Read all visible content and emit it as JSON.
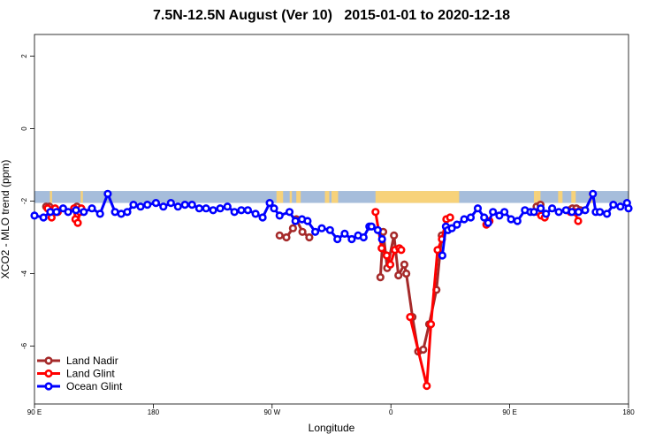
{
  "chart_data": {
    "type": "line",
    "title": "7.5N-12.5N August (Ver 10)   2015-01-01 to 2020-12-18",
    "xlabel": "Longitude",
    "ylabel": "XCO2 - MLO trend (ppm)",
    "xlim": [
      -90,
      180
    ],
    "ylim": [
      -7.6,
      2.6
    ],
    "x_ticks": [
      {
        "value": -90,
        "label": "90 E"
      },
      {
        "value": -36,
        "label": "180"
      },
      {
        "value": 18,
        "label": "90 W"
      },
      {
        "value": 72,
        "label": "0"
      },
      {
        "value": 126,
        "label": "90 E"
      },
      {
        "value": 180,
        "label": "180"
      }
    ],
    "y_ticks": [
      {
        "value": -6,
        "label": "-6"
      },
      {
        "value": -4,
        "label": "-4"
      },
      {
        "value": -2,
        "label": "-2"
      },
      {
        "value": 0,
        "label": "0"
      },
      {
        "value": 2,
        "label": "2"
      }
    ],
    "legend_position": "bottom-left",
    "surface_band": {
      "y_range": [
        -2.05,
        -1.72
      ],
      "ocean_color": "#a6bddb",
      "land_color": "#f7d27a",
      "land_spans": [
        [
          -83,
          -82
        ],
        [
          -69,
          -68
        ],
        [
          20,
          23
        ],
        [
          26,
          27
        ],
        [
          29,
          31
        ],
        [
          42,
          44
        ],
        [
          45,
          48
        ],
        [
          65,
          103
        ],
        [
          137,
          139
        ],
        [
          139,
          140
        ],
        [
          148,
          150
        ],
        [
          154,
          156
        ],
        [
          162,
          164
        ]
      ]
    },
    "series": [
      {
        "name": "Land Nadir",
        "color": "#a52a2a",
        "segments": [
          {
            "x": [
              -84.7,
              -83.2,
              -81.6
            ],
            "y": [
              -2.15,
              -2.15,
              -2.3
            ]
          },
          {
            "x": [
              -70.7,
              -69.2
            ],
            "y": [
              -2.15,
              -2.3
            ]
          },
          {
            "x": [
              21.4,
              24.5,
              27.5,
              29.0,
              31.8,
              34.9
            ],
            "y": [
              -2.95,
              -3.0,
              -2.75,
              -2.5,
              -2.85,
              -3.0
            ]
          },
          {
            "x": [
              67.2,
              68.5,
              70.3,
              73.4,
              75.4,
              78.1,
              79.0,
              81.8,
              84.4,
              86.7,
              89.4,
              92.7,
              95.1
            ],
            "y": [
              -4.1,
              -2.85,
              -3.85,
              -2.95,
              -4.05,
              -3.75,
              -4.0,
              -5.2,
              -6.15,
              -6.1,
              -5.4,
              -4.45,
              -2.95
            ]
          },
          {
            "x": [
              138.2,
              140.0,
              142.2
            ],
            "y": [
              -2.15,
              -2.1,
              -2.35
            ]
          },
          {
            "x": [
              153.1,
              154.5,
              156.3,
              158.1
            ],
            "y": [
              -2.25,
              -2.2,
              -2.2,
              -2.25
            ]
          }
        ]
      },
      {
        "name": "Land Glint",
        "color": "#ff0000",
        "segments": [
          {
            "x": [
              -84.0,
              -82.2,
              -80.6,
              -79.4
            ],
            "y": [
              -2.2,
              -2.45,
              -2.2,
              -2.3
            ]
          },
          {
            "x": [
              -72.0,
              -71.4,
              -70.3,
              -69.4,
              -68.7
            ],
            "y": [
              -2.2,
              -2.5,
              -2.6,
              -2.3,
              -2.2
            ]
          },
          {
            "x": [
              65.0,
              67.8,
              70.1,
              71.7,
              73.8
            ],
            "y": [
              -2.3,
              -3.3,
              -3.5,
              -3.75,
              -3.35
            ]
          },
          {
            "x": [
              75.8,
              76.7
            ],
            "y": [
              -3.3,
              -3.35
            ]
          },
          {
            "x": [
              80.7,
              88.3,
              90.2,
              93.2,
              95.2,
              97.2,
              98.9
            ],
            "y": [
              -5.2,
              -7.1,
              -5.4,
              -3.35,
              -3.05,
              -2.5,
              -2.45
            ]
          },
          {
            "x": [
              115.4,
              116.8
            ],
            "y": [
              -2.65,
              -2.55
            ]
          },
          {
            "x": [
              138.8,
              140.3,
              141.9
            ],
            "y": [
              -2.3,
              -2.4,
              -2.45
            ]
          },
          {
            "x": [
              153.6,
              155.5,
              157.1
            ],
            "y": [
              -2.3,
              -2.3,
              -2.55
            ]
          }
        ]
      },
      {
        "name": "Ocean Glint",
        "color": "#0000ff",
        "segments": [
          {
            "x": [
              -90.0,
              -85.9,
              -82.8,
              -80.0,
              -77.0,
              -74.7,
              -71.1,
              -67.6,
              -63.9,
              -60.2,
              -56.7,
              -53.4,
              -50.6,
              -47.8,
              -45.0,
              -41.8,
              -38.7,
              -34.8,
              -31.4,
              -28.0,
              -24.8,
              -21.6,
              -18.4,
              -15.1,
              -12.0,
              -8.8,
              -5.6,
              -2.3,
              0.9,
              4.0,
              7.0,
              10.5,
              13.7,
              16.9,
              18.9,
              21.4,
              25.9,
              28.6,
              31.6,
              34.1,
              37.6,
              40.6,
              44.3,
              47.7,
              51.0,
              54.2,
              57.1,
              59.6,
              62.2
            ],
            "y": [
              -2.4,
              -2.45,
              -2.3,
              -2.3,
              -2.2,
              -2.3,
              -2.25,
              -2.3,
              -2.2,
              -2.35,
              -1.8,
              -2.3,
              -2.35,
              -2.3,
              -2.1,
              -2.15,
              -2.1,
              -2.05,
              -2.15,
              -2.05,
              -2.15,
              -2.1,
              -2.1,
              -2.2,
              -2.2,
              -2.25,
              -2.2,
              -2.15,
              -2.3,
              -2.25,
              -2.25,
              -2.35,
              -2.45,
              -2.05,
              -2.2,
              -2.4,
              -2.3,
              -2.55,
              -2.5,
              -2.55,
              -2.85,
              -2.75,
              -2.8,
              -3.05,
              -2.9,
              -3.05,
              -2.95,
              -3.0,
              -2.7
            ]
          },
          {
            "x": [
              63.2,
              66.0,
              68.0
            ],
            "y": [
              -2.7,
              -2.8,
              -3.05
            ]
          },
          {
            "x": [
              95.4,
              97.0,
              97.9,
              99.7,
              102.0,
              105.3,
              108.3,
              111.5,
              114.4,
              116.2,
              118.4,
              121.3,
              123.6,
              126.6,
              129.5,
              132.9,
              135.4,
              137.0,
              140.1,
              142.5,
              145.3,
              148.3,
              151.6,
              154.3,
              157.3,
              160.3,
              163.8,
              165.1,
              167.0,
              170.2,
              173.1,
              176.3,
              179.3,
              180.0
            ],
            "y": [
              -3.5,
              -2.7,
              -2.8,
              -2.75,
              -2.65,
              -2.5,
              -2.45,
              -2.2,
              -2.45,
              -2.6,
              -2.3,
              -2.4,
              -2.3,
              -2.5,
              -2.55,
              -2.25,
              -2.3,
              -2.3,
              -2.2,
              -2.35,
              -2.2,
              -2.3,
              -2.25,
              -2.3,
              -2.3,
              -2.25,
              -1.8,
              -2.3,
              -2.3,
              -2.35,
              -2.1,
              -2.15,
              -2.05,
              -2.2
            ]
          }
        ]
      }
    ]
  }
}
